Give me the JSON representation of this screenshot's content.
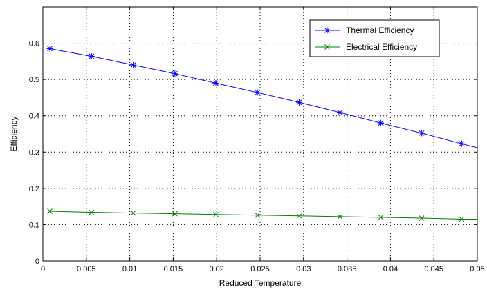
{
  "chart_data": {
    "type": "line",
    "xlabel": "Reduced Temperature",
    "ylabel": "Efficiency",
    "xlim": [
      0,
      0.05
    ],
    "ylim": [
      0,
      0.7
    ],
    "xticks": [
      "0",
      "0.005",
      "0.01",
      "0.015",
      "0.02",
      "0.025",
      "0.03",
      "0.035",
      "0.04",
      "0.045",
      "0.05"
    ],
    "yticks": [
      "0",
      "0.1",
      "0.2",
      "0.3",
      "0.4",
      "0.5",
      "0.6"
    ],
    "grid": true,
    "legend_position": "top-right",
    "series": [
      {
        "name": "Thermal Efficiency",
        "color": "#0000ff",
        "marker": "asterisk",
        "x": [
          0.0008,
          0.0056,
          0.0104,
          0.0152,
          0.0199,
          0.0247,
          0.0295,
          0.0342,
          0.0389,
          0.0436,
          0.0482,
          0.05
        ],
        "y": [
          0.585,
          0.564,
          0.54,
          0.516,
          0.49,
          0.464,
          0.437,
          0.409,
          0.38,
          0.352,
          0.323,
          0.312
        ],
        "marker_count": 11
      },
      {
        "name": "Electrical Efficiency",
        "color": "#008000",
        "marker": "x",
        "x": [
          0.0008,
          0.0056,
          0.0104,
          0.0152,
          0.0199,
          0.0247,
          0.0295,
          0.0342,
          0.0389,
          0.0436,
          0.0482,
          0.05
        ],
        "y": [
          0.137,
          0.134,
          0.132,
          0.13,
          0.128,
          0.126,
          0.124,
          0.122,
          0.12,
          0.118,
          0.115,
          0.115
        ],
        "marker_count": 11
      }
    ]
  }
}
